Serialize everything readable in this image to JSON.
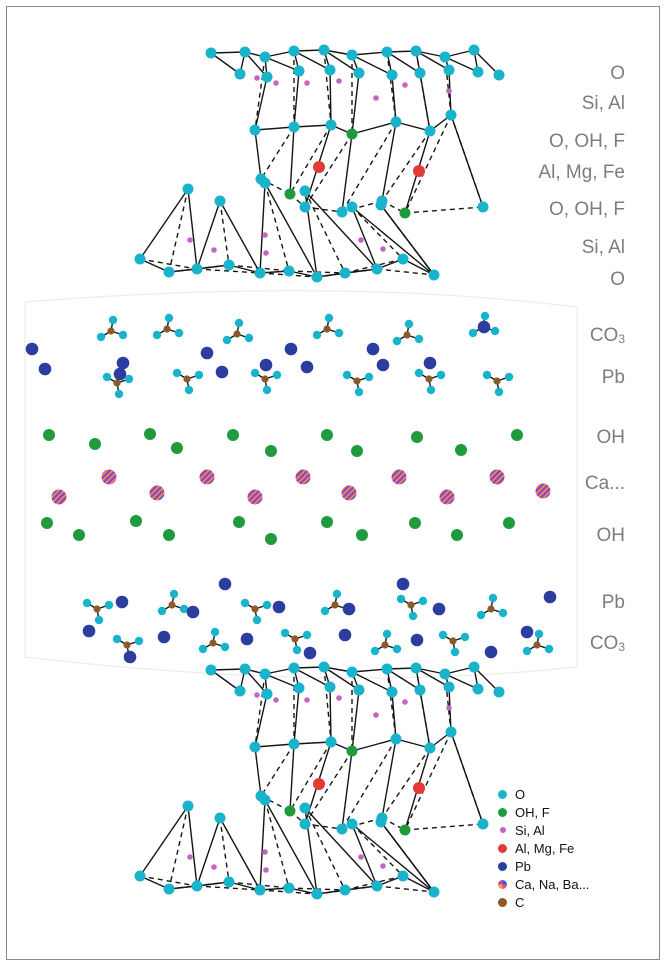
{
  "labels": {
    "o_top": "O",
    "si_al_top": "Si, Al",
    "o_oh_f_1": "O, OH, F",
    "al_mg_fe": "Al, Mg, Fe",
    "o_oh_f_2": "O, OH, F",
    "si_al_2": "Si, Al",
    "o_2": "O",
    "co3_1_base": "CO",
    "co3_1_sub": "3",
    "pb_1": "Pb",
    "oh_1": "OH",
    "ca": "Ca...",
    "oh_2": "OH",
    "pb_2": "Pb",
    "co3_2_base": "CO",
    "co3_2_sub": "3"
  },
  "legend": [
    {
      "label": "O",
      "color": "#19b3cc"
    },
    {
      "label": "OH, F",
      "color": "#1f9a3c"
    },
    {
      "label": "Si, Al",
      "color": "#c464c4"
    },
    {
      "label": "Al, Mg, Fe",
      "color": "#e23a36"
    },
    {
      "label": "Pb",
      "color": "#2b3d9e"
    },
    {
      "label": "Ca, Na, Ba...",
      "color": "multi"
    },
    {
      "label": "C",
      "color": "#8a5a2b"
    }
  ],
  "colors": {
    "oxygen": "#19b3cc",
    "hydroxyl": "#1f9a3c",
    "silicon": "#c464c4",
    "aluminium": "#e23a36",
    "lead": "#2b3d9e",
    "carbon": "#8a5a2b",
    "label_gray": "#7d7d7d"
  }
}
